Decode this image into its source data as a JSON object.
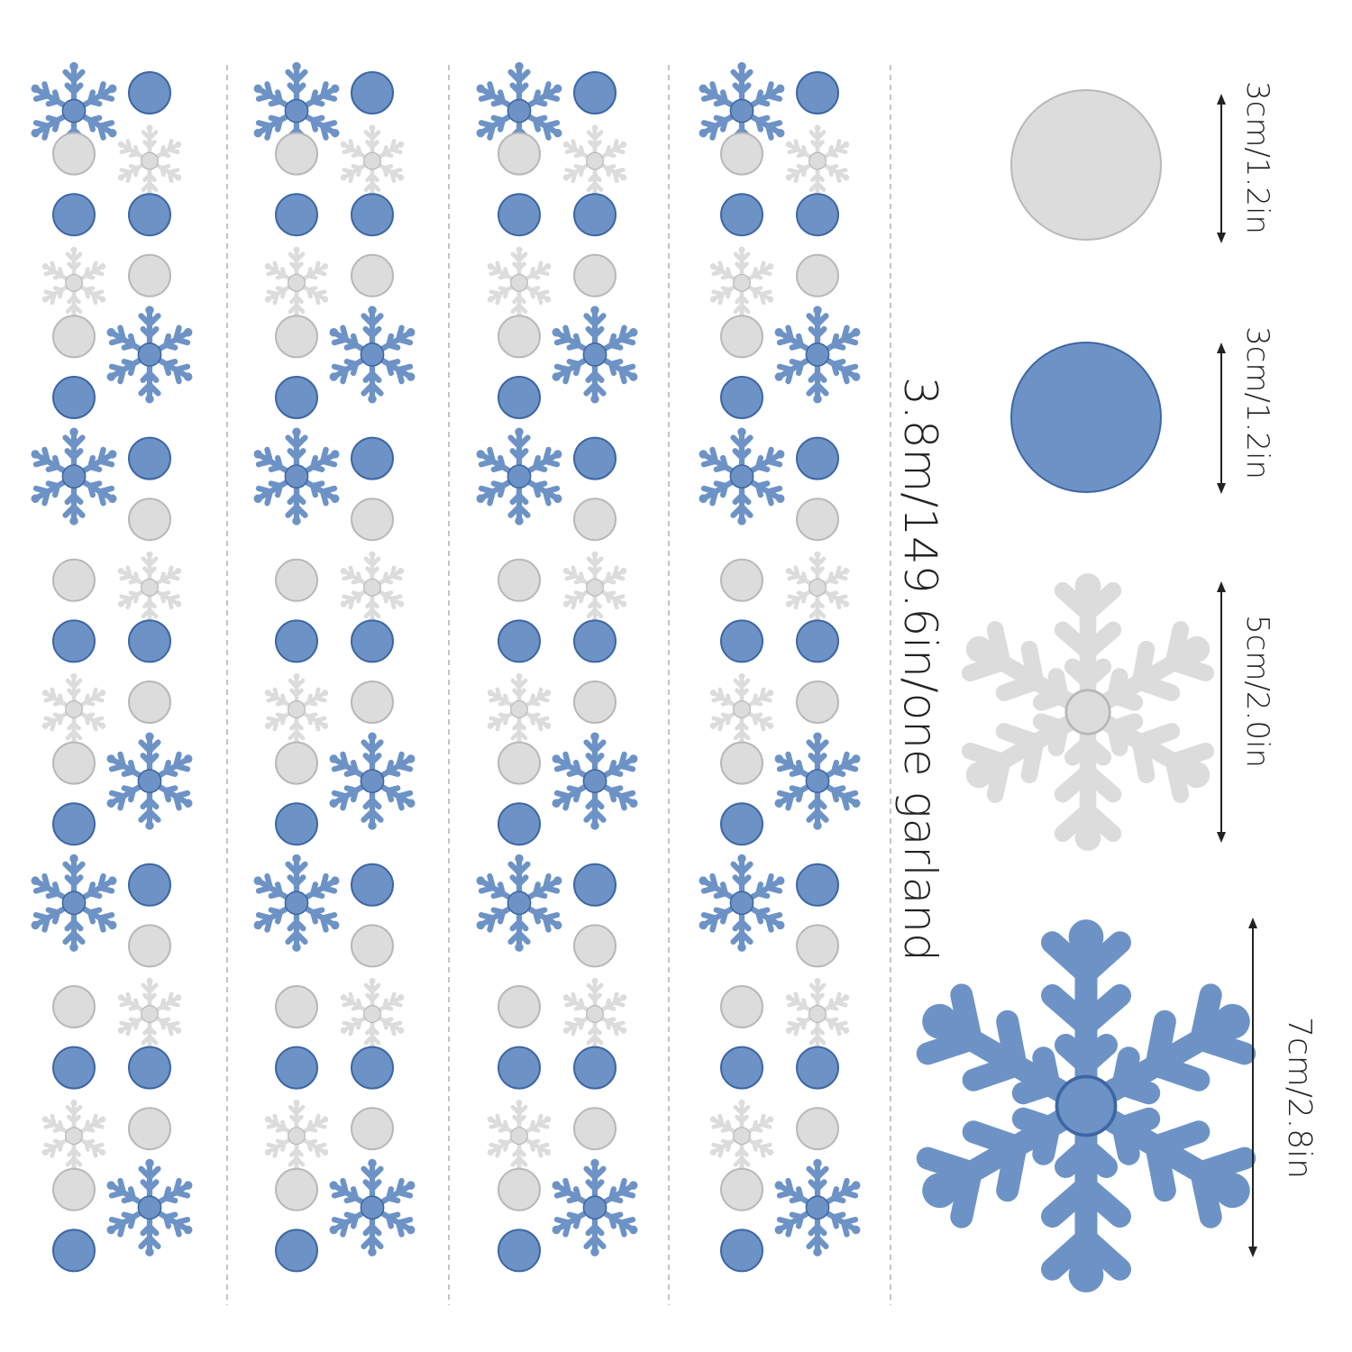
{
  "colors": {
    "blue": "#6d93c6",
    "blue_dark": "#3d66a4",
    "silver": "#dcdcdc",
    "silver_dark": "#b8b8b8",
    "divider": "#b0b0b0",
    "arrow": "#222222"
  },
  "garland": {
    "length_label": "3.8m/149.6in/one garland",
    "strand_count": 4,
    "pattern": [
      {
        "left": "blue-snowflake",
        "right": "blue-dot"
      },
      {
        "left": "silver-dot",
        "right": "silver-snowflake"
      },
      {
        "left": "blue-dot",
        "right": "blue-dot"
      },
      {
        "left": "silver-snowflake",
        "right": "silver-dot"
      },
      {
        "left": "silver-dot",
        "right": "blue-snowflake"
      },
      {
        "left": "blue-dot",
        "right": ""
      },
      {
        "left": "blue-snowflake",
        "right": "blue-dot"
      },
      {
        "left": "",
        "right": "silver-dot"
      },
      {
        "left": "silver-dot",
        "right": "silver-snowflake"
      },
      {
        "left": "blue-dot",
        "right": "blue-dot"
      },
      {
        "left": "silver-snowflake",
        "right": "silver-dot"
      },
      {
        "left": "silver-dot",
        "right": "blue-snowflake"
      },
      {
        "left": "blue-dot",
        "right": ""
      },
      {
        "left": "blue-snowflake",
        "right": "blue-dot"
      },
      {
        "left": "",
        "right": "silver-dot"
      },
      {
        "left": "silver-dot",
        "right": "silver-snowflake"
      },
      {
        "left": "blue-dot",
        "right": "blue-dot"
      },
      {
        "left": "silver-snowflake",
        "right": "silver-dot"
      },
      {
        "left": "silver-dot",
        "right": "blue-snowflake"
      },
      {
        "left": "blue-dot",
        "right": ""
      }
    ]
  },
  "sizes": [
    {
      "item": "silver-dot",
      "label": "3cm/1.2in"
    },
    {
      "item": "blue-dot",
      "label": "3cm/1.2in"
    },
    {
      "item": "silver-snowflake",
      "label": "5cm/2.0in"
    },
    {
      "item": "blue-snowflake",
      "label": "7cm/2.8in"
    }
  ]
}
